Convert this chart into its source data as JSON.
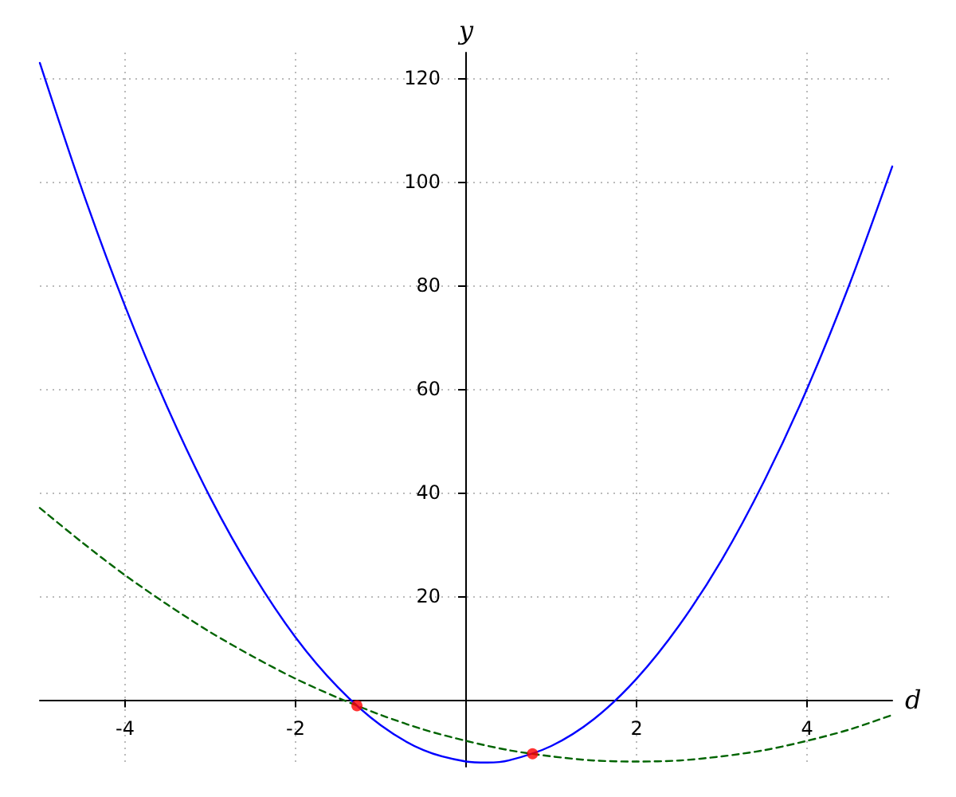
{
  "chart_data": {
    "type": "line",
    "xlabel": "d",
    "ylabel": "y",
    "xlim": [
      -5,
      5
    ],
    "ylim": [
      -13,
      125
    ],
    "xticks": [
      -4,
      -2,
      2,
      4
    ],
    "yticks": [
      20,
      40,
      60,
      80,
      100,
      120
    ],
    "grid": true,
    "series": [
      {
        "color": "#0000ff",
        "line_style": "solid",
        "marker": "none",
        "x": [
          -5,
          -4.5,
          -4,
          -3.5,
          -3,
          -2.5,
          -2,
          -1.5,
          -1,
          -0.5,
          0,
          0.25,
          0.5,
          1,
          1.5,
          2,
          2.5,
          3,
          3.5,
          4,
          4.5,
          5
        ],
        "values": [
          123,
          98.3,
          76,
          56.3,
          39,
          24.3,
          12,
          2.3,
          -5,
          -9.8,
          -12,
          -12.2,
          -11.8,
          -9,
          -3.8,
          4,
          14.3,
          27,
          42.3,
          60,
          80.3,
          103
        ]
      },
      {
        "color": "#006400",
        "line_style": "dashed",
        "marker": "none",
        "x": [
          -5,
          -4.5,
          -4,
          -3.5,
          -3,
          -2.5,
          -2,
          -1.5,
          -1,
          -0.5,
          0,
          0.5,
          1,
          1.5,
          2,
          2.5,
          3,
          3.5,
          4,
          4.5,
          5
        ],
        "values": [
          37,
          30.3,
          24,
          18.3,
          13,
          8.3,
          4,
          0.3,
          -3,
          -5.8,
          -8,
          -9.8,
          -11,
          -11.8,
          -12,
          -11.8,
          -11,
          -9.8,
          -8,
          -5.8,
          -3
        ]
      },
      {
        "type": "scatter",
        "color": "#ff0000",
        "marker": "circle",
        "x": [
          -1.28,
          0.78
        ],
        "values": [
          -1.2,
          -10.5
        ]
      }
    ]
  }
}
